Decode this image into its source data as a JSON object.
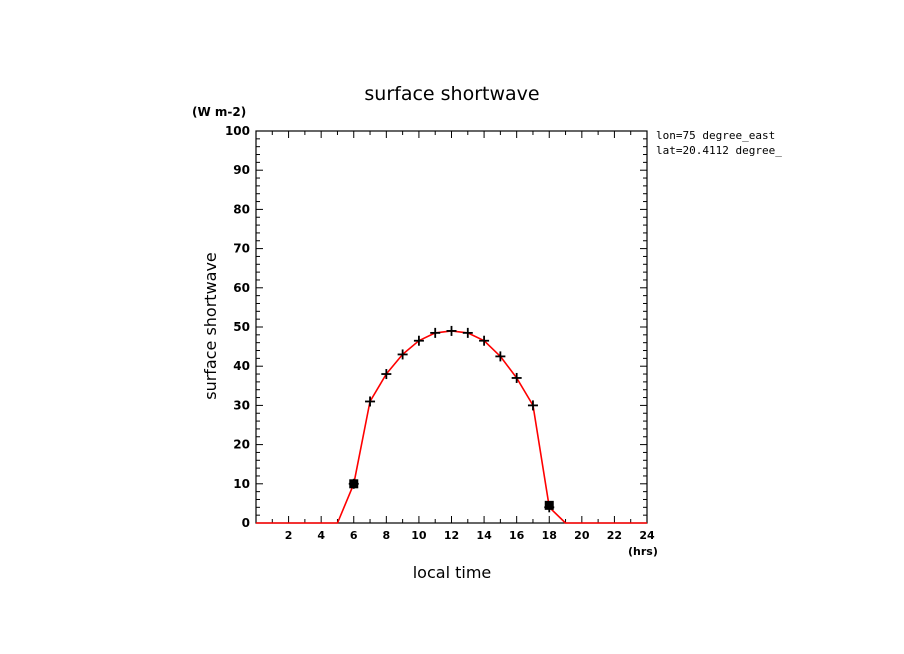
{
  "chart_data": {
    "type": "line",
    "title": "surface shortwave",
    "units": "(W m-2)",
    "xlabel": "local time",
    "x_units": "(hrs)",
    "ylabel": "surface shortwave",
    "xlim": [
      0,
      24
    ],
    "ylim": [
      0,
      100
    ],
    "x_ticks": [
      2,
      4,
      6,
      8,
      10,
      12,
      14,
      16,
      18,
      20,
      22,
      24
    ],
    "y_ticks": [
      0,
      10,
      20,
      30,
      40,
      50,
      60,
      70,
      80,
      90,
      100
    ],
    "annotations": [
      "lon=75 degree_east",
      "lat=20.4112 degree_"
    ],
    "grid": false,
    "series": [
      {
        "color": "#ff0000",
        "x": [
          0,
          1,
          2,
          3,
          4,
          5,
          6,
          7,
          8,
          9,
          10,
          11,
          12,
          13,
          14,
          15,
          16,
          17,
          18,
          19,
          20,
          21,
          22,
          23,
          24
        ],
        "y": [
          0,
          0,
          0,
          0,
          0,
          0,
          10,
          31,
          38,
          43,
          46.5,
          48.5,
          49,
          48.5,
          46.5,
          42.5,
          37,
          30,
          4,
          0,
          0,
          0,
          0,
          0,
          0
        ]
      }
    ],
    "markers": {
      "plus": [
        {
          "x": 6,
          "y": 10
        },
        {
          "x": 7,
          "y": 31
        },
        {
          "x": 8,
          "y": 38
        },
        {
          "x": 9,
          "y": 43
        },
        {
          "x": 10,
          "y": 46.5
        },
        {
          "x": 11,
          "y": 48.5
        },
        {
          "x": 12,
          "y": 49
        },
        {
          "x": 13,
          "y": 48.5
        },
        {
          "x": 14,
          "y": 46.5
        },
        {
          "x": 15,
          "y": 42.5
        },
        {
          "x": 16,
          "y": 37
        },
        {
          "x": 17,
          "y": 30
        },
        {
          "x": 18,
          "y": 4
        }
      ],
      "square": [
        {
          "x": 6,
          "y": 10
        },
        {
          "x": 18,
          "y": 4.5
        }
      ]
    }
  }
}
